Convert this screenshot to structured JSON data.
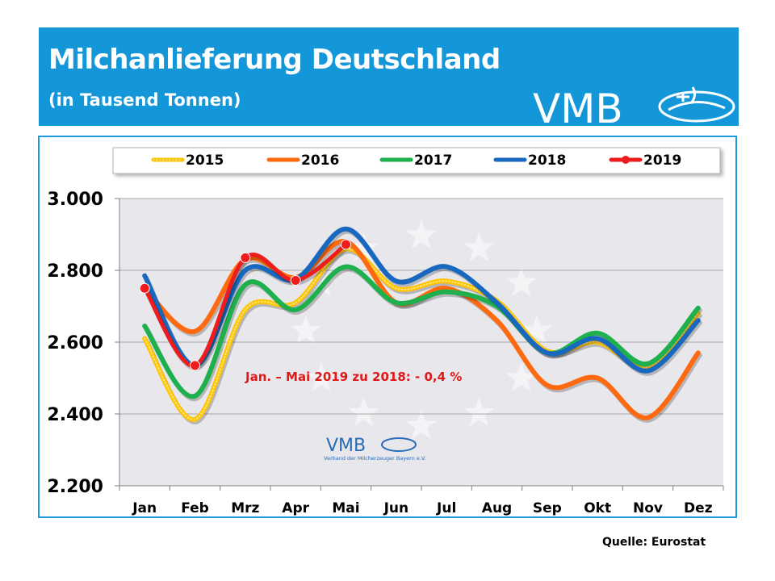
{
  "header": {
    "title": "Milchanlieferung Deutschland",
    "subtitle": "(in Tausend Tonnen)",
    "logo_text": "VMB"
  },
  "watermark": {
    "logo_text": "VMB",
    "tagline": "Verband der Milcherzeuger Bayern e.V."
  },
  "source": "Quelle: Eurostat",
  "annotation": "Jan. – Mai 2019 zu 2018:  - 0,4 %",
  "colors": {
    "header_bg": "#1497d9",
    "plot_bg": "#e8e8ec",
    "annotation": "#e01818"
  },
  "chart_data": {
    "type": "line",
    "categories": [
      "Jan",
      "Feb",
      "Mrz",
      "Apr",
      "Mai",
      "Jun",
      "Jul",
      "Aug",
      "Sep",
      "Okt",
      "Nov",
      "Dez"
    ],
    "ylim": [
      2200,
      3000
    ],
    "yticks": [
      "2.200",
      "2.400",
      "2.600",
      "2.800",
      "3.000"
    ],
    "ytick_values": [
      2200,
      2400,
      2600,
      2800,
      3000
    ],
    "grid": true,
    "legend_position": "top",
    "series": [
      {
        "name": "2015",
        "color": "#ffc400",
        "style": "dotted",
        "values": [
          2610,
          2385,
          2690,
          2710,
          2860,
          2750,
          2770,
          2715,
          2575,
          2600,
          2530,
          2680
        ]
      },
      {
        "name": "2016",
        "color": "#ff6a10",
        "style": "solid",
        "values": [
          2750,
          2630,
          2830,
          2780,
          2880,
          2710,
          2750,
          2660,
          2480,
          2500,
          2390,
          2570
        ]
      },
      {
        "name": "2017",
        "color": "#1fb04e",
        "style": "solid",
        "values": [
          2645,
          2450,
          2760,
          2690,
          2810,
          2710,
          2740,
          2700,
          2570,
          2625,
          2540,
          2695
        ]
      },
      {
        "name": "2018",
        "color": "#1868c0",
        "style": "solid",
        "values": [
          2785,
          2535,
          2800,
          2775,
          2915,
          2770,
          2810,
          2710,
          2570,
          2610,
          2520,
          2660
        ]
      },
      {
        "name": "2019",
        "color": "#ee1c1c",
        "style": "marker",
        "values": [
          2750,
          2535,
          2835,
          2772,
          2872,
          null,
          null,
          null,
          null,
          null,
          null,
          null
        ]
      }
    ]
  }
}
